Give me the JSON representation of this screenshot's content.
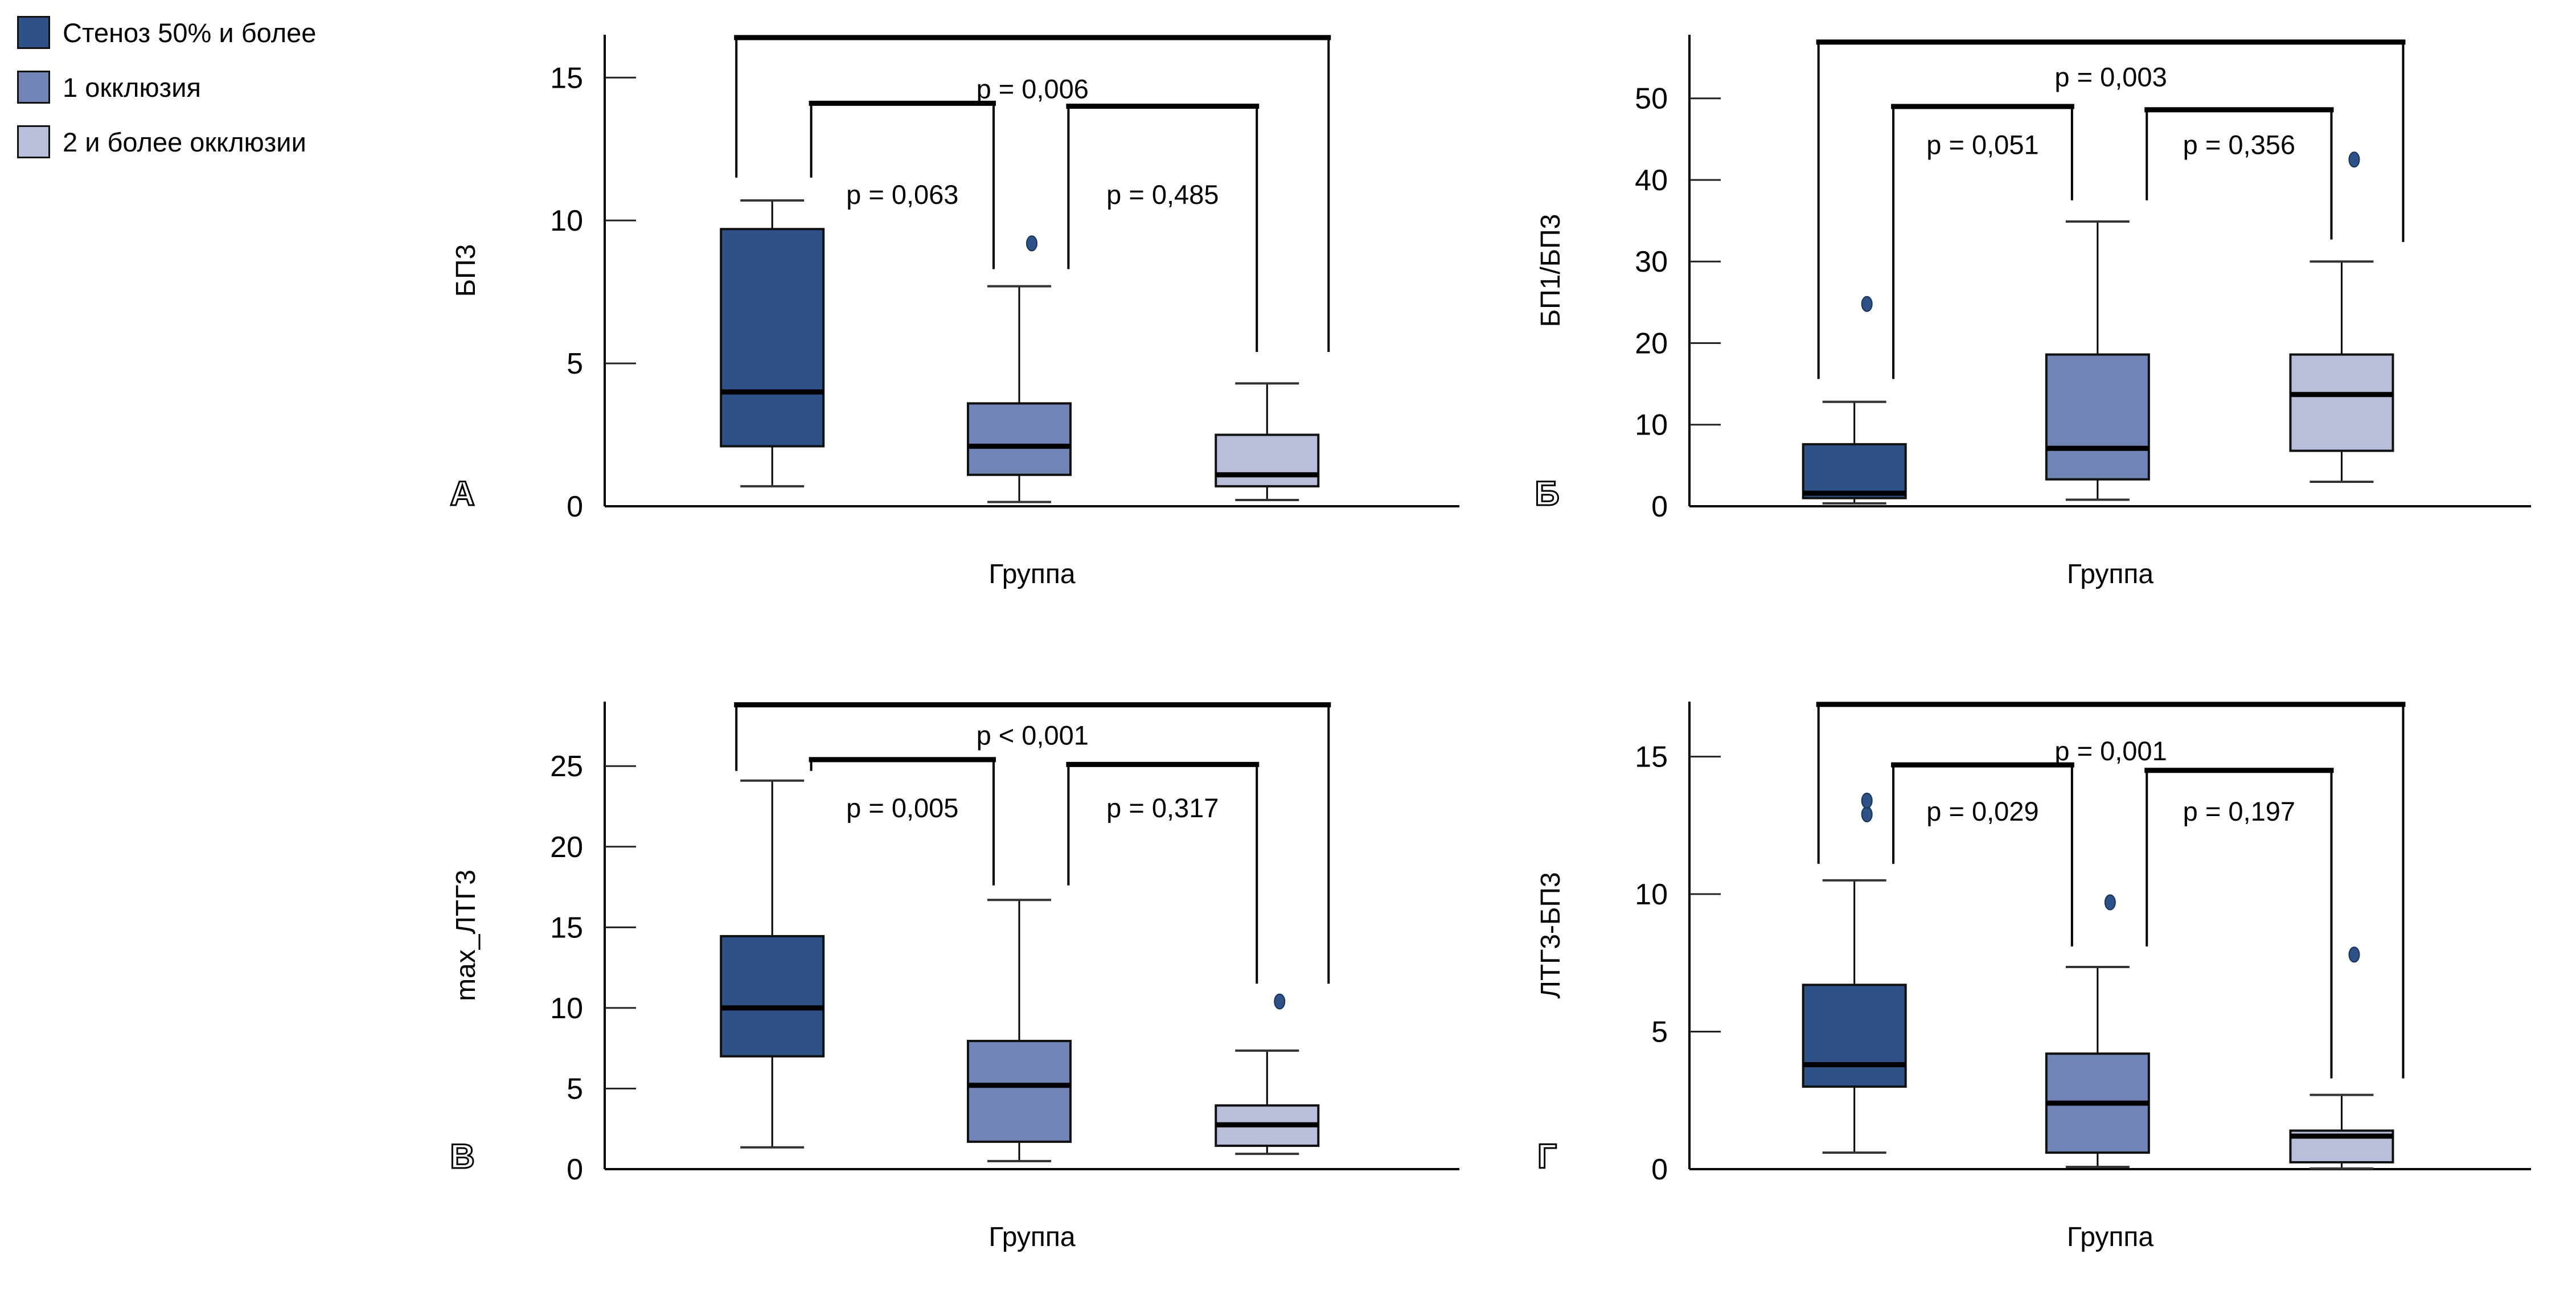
{
  "legend": {
    "items": [
      {
        "label": "Стеноз 50% и более",
        "color": "#2e5187"
      },
      {
        "label": "1 окклюзия",
        "color": "#7085b6"
      },
      {
        "label": "2 и более окклюзии",
        "color": "#b9bfdb"
      }
    ]
  },
  "chart_data": {
    "type": "boxplot",
    "grid": "2x2",
    "xlabel": "Группа",
    "groups": [
      "Стеноз 50% и более",
      "1 окклюзия",
      "2 и более окклюзии"
    ],
    "group_colors": [
      "#2e5187",
      "#7085b6",
      "#b9bfdb"
    ],
    "outlier_color": "#2e5187",
    "panels": [
      {
        "letter": "А",
        "ylabel": "БП3",
        "yticks": [
          0,
          5,
          10,
          15
        ],
        "axis_top": 16.5,
        "boxes": [
          {
            "whislo": 0.7,
            "q1": 2.1,
            "med": 4.0,
            "q3": 9.7,
            "whishi": 10.7,
            "outliers": []
          },
          {
            "whislo": 0.15,
            "q1": 1.1,
            "med": 2.1,
            "q3": 3.6,
            "whishi": 7.7,
            "outliers": [
              9.2
            ]
          },
          {
            "whislo": 0.22,
            "q1": 0.7,
            "med": 1.1,
            "q3": 2.5,
            "whishi": 4.3,
            "outliers": []
          }
        ],
        "comparisons": [
          {
            "a": 0,
            "b": 2,
            "label": "p = 0,006",
            "top": 16.4,
            "label_y": 14.6,
            "a_end": 11.5,
            "b_end": 5.4,
            "a_off": -0.35,
            "b_off": 0.6
          },
          {
            "a": 0,
            "b": 1,
            "label": "p = 0,063",
            "top": 14.1,
            "label_y": 10.9,
            "a_end": 11.5,
            "b_end": 8.3,
            "a_off": 0.38,
            "b_off": -0.25
          },
          {
            "a": 1,
            "b": 2,
            "label": "p = 0,485",
            "top": 14.0,
            "label_y": 10.9,
            "a_end": 8.3,
            "b_end": 5.4,
            "a_off": 0.48,
            "b_off": -0.1
          }
        ]
      },
      {
        "letter": "Б",
        "ylabel": "БП1/БП3",
        "yticks": [
          0,
          10,
          20,
          30,
          40,
          50
        ],
        "axis_top": 57.8,
        "boxes": [
          {
            "whislo": 0.36,
            "q1": 1.0,
            "med": 1.6,
            "q3": 7.6,
            "whishi": 12.8,
            "outliers": [
              24.8
            ]
          },
          {
            "whislo": 0.8,
            "q1": 3.3,
            "med": 7.1,
            "q3": 18.6,
            "whishi": 34.9,
            "outliers": []
          },
          {
            "whislo": 3.0,
            "q1": 6.8,
            "med": 13.7,
            "q3": 18.6,
            "whishi": 30.0,
            "outliers": [
              42.5
            ]
          }
        ],
        "comparisons": [
          {
            "a": 0,
            "b": 2,
            "label": "p = 0,003",
            "top": 56.9,
            "label_y": 52.6,
            "a_end": 15.6,
            "b_end": 32.4,
            "a_off": -0.35,
            "b_off": 0.6
          },
          {
            "a": 0,
            "b": 1,
            "label": "p = 0,051",
            "top": 49.0,
            "label_y": 44.3,
            "a_end": 15.6,
            "b_end": 37.5,
            "a_off": 0.38,
            "b_off": -0.25
          },
          {
            "a": 1,
            "b": 2,
            "label": "p = 0,356",
            "top": 48.6,
            "label_y": 44.3,
            "a_end": 37.5,
            "b_end": 32.7,
            "a_off": 0.48,
            "b_off": -0.1
          }
        ]
      },
      {
        "letter": "В",
        "ylabel": "max_ЛТГ3",
        "yticks": [
          0,
          5,
          10,
          15,
          20,
          25
        ],
        "axis_top": 29.0,
        "boxes": [
          {
            "whislo": 1.35,
            "q1": 7.0,
            "med": 10.0,
            "q3": 14.45,
            "whishi": 24.1,
            "outliers": []
          },
          {
            "whislo": 0.5,
            "q1": 1.7,
            "med": 5.2,
            "q3": 7.95,
            "whishi": 16.7,
            "outliers": []
          },
          {
            "whislo": 0.95,
            "q1": 1.45,
            "med": 2.75,
            "q3": 3.95,
            "whishi": 7.35,
            "outliers": [
              10.4
            ]
          }
        ],
        "comparisons": [
          {
            "a": 0,
            "b": 2,
            "label": "p < 0,001",
            "top": 28.8,
            "label_y": 26.9,
            "a_end": 24.7,
            "b_end": 11.5,
            "a_off": -0.35,
            "b_off": 0.6
          },
          {
            "a": 0,
            "b": 1,
            "label": "p = 0,005",
            "top": 25.4,
            "label_y": 22.4,
            "a_end": 24.7,
            "b_end": 17.6,
            "a_off": 0.38,
            "b_off": -0.25
          },
          {
            "a": 1,
            "b": 2,
            "label": "p = 0,317",
            "top": 25.1,
            "label_y": 22.4,
            "a_end": 17.6,
            "b_end": 11.5,
            "a_off": 0.48,
            "b_off": -0.1
          }
        ]
      },
      {
        "letter": "Г",
        "ylabel": "ЛТГ3-БП3",
        "yticks": [
          0,
          5,
          10,
          15
        ],
        "axis_top": 17.0,
        "boxes": [
          {
            "whislo": 0.6,
            "q1": 3.0,
            "med": 3.8,
            "q3": 6.7,
            "whishi": 10.5,
            "outliers": [
              12.9,
              13.4
            ]
          },
          {
            "whislo": 0.08,
            "q1": 0.6,
            "med": 2.4,
            "q3": 4.2,
            "whishi": 7.35,
            "outliers": [
              9.7
            ]
          },
          {
            "whislo": 0.02,
            "q1": 0.25,
            "med": 1.2,
            "q3": 1.4,
            "whishi": 2.7,
            "outliers": [
              7.8
            ]
          }
        ],
        "comparisons": [
          {
            "a": 0,
            "b": 2,
            "label": "p = 0,001",
            "top": 16.9,
            "label_y": 15.2,
            "a_end": 11.1,
            "b_end": 3.3,
            "a_off": -0.35,
            "b_off": 0.6
          },
          {
            "a": 0,
            "b": 1,
            "label": "p = 0,029",
            "top": 14.7,
            "label_y": 13.0,
            "a_end": 11.1,
            "b_end": 8.1,
            "a_off": 0.38,
            "b_off": -0.25
          },
          {
            "a": 1,
            "b": 2,
            "label": "p = 0,197",
            "top": 14.5,
            "label_y": 13.0,
            "a_end": 8.1,
            "b_end": 3.3,
            "a_off": 0.48,
            "b_off": -0.1
          }
        ]
      }
    ]
  }
}
